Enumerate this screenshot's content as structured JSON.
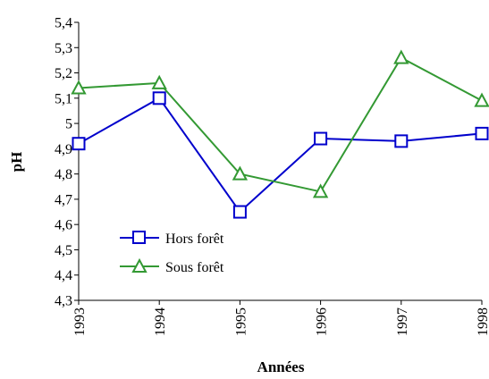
{
  "chart_data": {
    "type": "line",
    "xlabel": "Années",
    "ylabel": "pH",
    "categories": [
      "1993",
      "1994",
      "1995",
      "1996",
      "1997",
      "1998"
    ],
    "ylim": [
      4.3,
      5.4
    ],
    "yticks": [
      "4,3",
      "4,4",
      "4,5",
      "4,6",
      "4,7",
      "4,8",
      "4,9",
      "5",
      "5,1",
      "5,2",
      "5,3",
      "5,4"
    ],
    "grid": false,
    "legend_position": "bottom-left",
    "series": [
      {
        "name": "Hors forêt",
        "marker": "square",
        "color": "#0000cc",
        "values": [
          4.92,
          5.1,
          4.65,
          4.94,
          4.93,
          4.96
        ]
      },
      {
        "name": "Sous forêt",
        "marker": "triangle",
        "color": "#339933",
        "values": [
          5.14,
          5.16,
          4.8,
          4.73,
          5.26,
          5.09
        ]
      }
    ]
  }
}
